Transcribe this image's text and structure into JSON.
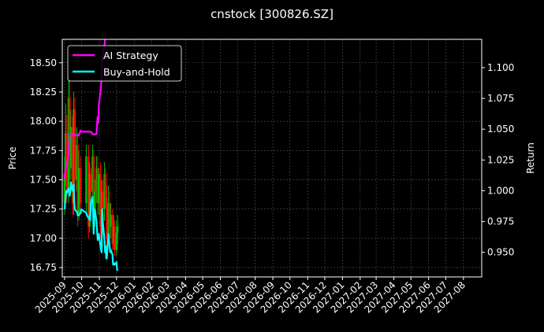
{
  "chart_data": {
    "type": "line",
    "title": "cnstock [300826.SZ]",
    "ylabel_left": "Price",
    "ylabel_right": "Return",
    "left_axis": {
      "ylim": [
        16.67,
        18.7
      ],
      "ticks": [
        "16.75",
        "17.00",
        "17.25",
        "17.50",
        "17.75",
        "18.00",
        "18.25",
        "18.50"
      ]
    },
    "right_axis": {
      "ylim": [
        0.93,
        1.123
      ],
      "ticks": [
        "0.950",
        "0.975",
        "1.000",
        "1.025",
        "1.050",
        "1.075",
        "1.100"
      ]
    },
    "x_axis": {
      "range": [
        "2025-08-28",
        "2027-09-02"
      ],
      "ticks": [
        "2025-09",
        "2025-10",
        "2025-11",
        "2025-12",
        "2026-01",
        "2026-02",
        "2026-03",
        "2026-04",
        "2026-05",
        "2026-06",
        "2026-07",
        "2026-08",
        "2026-09",
        "2026-10",
        "2026-11",
        "2026-12",
        "2027-01",
        "2027-02",
        "2027-03",
        "2027-04",
        "2027-05",
        "2027-06",
        "2027-07",
        "2027-08"
      ],
      "tick_dates": [
        "2025-09-01",
        "2025-10-01",
        "2025-11-01",
        "2025-12-01",
        "2026-01-01",
        "2026-02-01",
        "2026-03-01",
        "2026-04-01",
        "2026-05-01",
        "2026-06-01",
        "2026-07-01",
        "2026-08-01",
        "2026-09-01",
        "2026-10-01",
        "2026-11-01",
        "2026-12-01",
        "2027-01-01",
        "2027-02-01",
        "2027-03-01",
        "2027-04-01",
        "2027-05-01",
        "2027-06-01",
        "2027-07-01",
        "2027-08-01"
      ]
    },
    "grid": true,
    "legend": {
      "placement": "top-left",
      "entries": [
        "AI Strategy",
        "Buy-and-Hold"
      ]
    },
    "series": [
      {
        "name": "AI Strategy",
        "axis": "right",
        "color": "#ff00ff",
        "x": [
          "2025-09-01",
          "2025-09-02",
          "2025-09-03",
          "2025-09-04",
          "2025-09-05",
          "2025-09-08",
          "2025-09-09",
          "2025-09-10",
          "2025-09-11",
          "2025-09-12",
          "2025-09-15",
          "2025-09-16",
          "2025-09-17",
          "2025-09-18",
          "2025-09-19",
          "2025-09-22",
          "2025-09-23",
          "2025-09-24",
          "2025-09-25",
          "2025-09-26",
          "2025-09-29",
          "2025-09-30",
          "2025-10-09",
          "2025-10-10",
          "2025-10-13",
          "2025-10-14",
          "2025-10-15",
          "2025-10-16",
          "2025-10-17",
          "2025-10-20",
          "2025-10-21",
          "2025-10-22",
          "2025-10-23",
          "2025-10-24",
          "2025-10-27",
          "2025-10-28",
          "2025-10-29",
          "2025-10-30",
          "2025-10-31",
          "2025-11-03",
          "2025-11-04",
          "2025-11-05",
          "2025-11-06",
          "2025-11-07",
          "2025-11-10",
          "2025-11-11"
        ],
        "values": [
          1.01,
          1.015,
          1.018,
          1.02,
          1.022,
          1.03,
          1.04,
          1.045,
          1.045,
          1.045,
          1.046,
          1.045,
          1.046,
          1.046,
          1.045,
          1.045,
          1.045,
          1.045,
          1.045,
          1.045,
          1.049,
          1.048,
          1.048,
          1.048,
          1.048,
          1.048,
          1.048,
          1.048,
          1.048,
          1.046,
          1.046,
          1.046,
          1.046,
          1.046,
          1.046,
          1.055,
          1.06,
          1.055,
          1.07,
          1.08,
          1.085,
          1.095,
          1.105,
          1.11,
          1.118,
          1.123
        ]
      },
      {
        "name": "Buy-and-Hold",
        "axis": "right",
        "color": "#00ffff",
        "x": [
          "2025-09-01",
          "2025-09-02",
          "2025-09-03",
          "2025-09-04",
          "2025-09-05",
          "2025-09-08",
          "2025-09-09",
          "2025-09-10",
          "2025-09-11",
          "2025-09-12",
          "2025-09-15",
          "2025-09-16",
          "2025-09-17",
          "2025-09-18",
          "2025-09-19",
          "2025-09-22",
          "2025-09-23",
          "2025-09-24",
          "2025-09-25",
          "2025-09-26",
          "2025-09-29",
          "2025-09-30",
          "2025-10-09",
          "2025-10-10",
          "2025-10-13",
          "2025-10-14",
          "2025-10-15",
          "2025-10-16",
          "2025-10-17",
          "2025-10-20",
          "2025-10-21",
          "2025-10-22",
          "2025-10-23",
          "2025-10-24",
          "2025-10-27",
          "2025-10-28",
          "2025-10-29",
          "2025-10-30",
          "2025-10-31",
          "2025-11-03",
          "2025-11-04",
          "2025-11-05",
          "2025-11-06",
          "2025-11-07",
          "2025-11-10",
          "2025-11-11",
          "2025-11-12",
          "2025-11-13",
          "2025-11-14",
          "2025-11-17",
          "2025-11-18",
          "2025-11-19",
          "2025-11-20",
          "2025-11-21",
          "2025-11-24",
          "2025-11-25",
          "2025-11-26",
          "2025-11-27",
          "2025-11-28",
          "2025-12-01",
          "2025-12-02",
          "2025-12-03"
        ],
        "values": [
          0.985,
          0.99,
          0.995,
          1.0,
          0.998,
          1.002,
          0.999,
          0.996,
          0.999,
          1.007,
          1.0,
          1.003,
          1.005,
          0.99,
          0.985,
          0.983,
          0.983,
          0.98,
          0.98,
          0.98,
          0.982,
          0.985,
          0.982,
          0.98,
          0.978,
          0.977,
          0.98,
          0.976,
          0.99,
          0.995,
          0.98,
          0.965,
          0.978,
          0.985,
          0.975,
          0.967,
          0.96,
          0.962,
          0.965,
          0.955,
          0.952,
          0.95,
          0.985,
          0.975,
          0.96,
          0.95,
          0.955,
          0.945,
          0.945,
          0.965,
          0.96,
          0.955,
          0.95,
          0.952,
          0.948,
          0.94,
          0.94,
          0.941,
          0.94,
          0.942,
          0.936,
          0.935
        ]
      },
      {
        "name": "Price",
        "axis": "left",
        "type": "candlestick",
        "up_color": "#00c000",
        "down_color": "#ff0000",
        "x": [
          "2025-09-01",
          "2025-09-03",
          "2025-09-05",
          "2025-09-08",
          "2025-09-10",
          "2025-09-12",
          "2025-09-15",
          "2025-09-17",
          "2025-09-19",
          "2025-09-22",
          "2025-09-24",
          "2025-09-26",
          "2025-09-29",
          "2025-10-09",
          "2025-10-13",
          "2025-10-15",
          "2025-10-17",
          "2025-10-20",
          "2025-10-22",
          "2025-10-24",
          "2025-10-27",
          "2025-10-29",
          "2025-10-31",
          "2025-11-03",
          "2025-11-05",
          "2025-11-07",
          "2025-11-10",
          "2025-11-12",
          "2025-11-14",
          "2025-11-17",
          "2025-11-19",
          "2025-11-21",
          "2025-11-24",
          "2025-11-26",
          "2025-11-28",
          "2025-12-01",
          "2025-12-03"
        ],
        "open": [
          17.3,
          17.55,
          17.9,
          17.4,
          18.2,
          17.6,
          17.95,
          17.3,
          18.1,
          17.5,
          17.8,
          17.2,
          17.6,
          17.3,
          17.7,
          17.1,
          17.55,
          17.4,
          17.7,
          17.2,
          17.4,
          17.6,
          17.3,
          17.55,
          17.1,
          17.4,
          17.25,
          17.55,
          17.35,
          17.0,
          17.3,
          17.1,
          17.2,
          16.95,
          17.1,
          16.9,
          17.05
        ],
        "close": [
          17.55,
          17.9,
          17.4,
          18.2,
          17.6,
          17.95,
          17.3,
          18.1,
          17.5,
          17.8,
          17.2,
          17.6,
          17.3,
          17.7,
          17.1,
          17.55,
          17.4,
          17.7,
          17.2,
          17.4,
          17.6,
          17.3,
          17.55,
          17.1,
          17.4,
          17.25,
          17.55,
          17.35,
          17.0,
          17.3,
          17.1,
          17.2,
          16.95,
          17.1,
          16.9,
          17.05,
          17.1
        ],
        "high": [
          17.7,
          18.15,
          18.05,
          18.4,
          18.35,
          18.1,
          18.05,
          18.25,
          18.2,
          17.95,
          17.9,
          17.75,
          17.7,
          17.8,
          17.8,
          17.65,
          17.6,
          17.8,
          17.75,
          17.5,
          17.7,
          17.7,
          17.6,
          17.65,
          17.5,
          17.5,
          17.65,
          17.6,
          17.45,
          17.45,
          17.4,
          17.3,
          17.25,
          17.2,
          17.15,
          17.15,
          17.2
        ],
        "low": [
          17.2,
          17.45,
          17.3,
          17.3,
          17.5,
          17.5,
          17.2,
          17.2,
          17.4,
          17.4,
          17.1,
          17.15,
          17.2,
          17.2,
          17.0,
          17.05,
          17.3,
          17.3,
          17.1,
          17.1,
          17.3,
          17.2,
          17.2,
          17.0,
          17.0,
          17.15,
          17.15,
          17.25,
          16.9,
          16.95,
          17.0,
          17.0,
          16.9,
          16.9,
          16.85,
          16.85,
          16.95
        ]
      }
    ]
  }
}
